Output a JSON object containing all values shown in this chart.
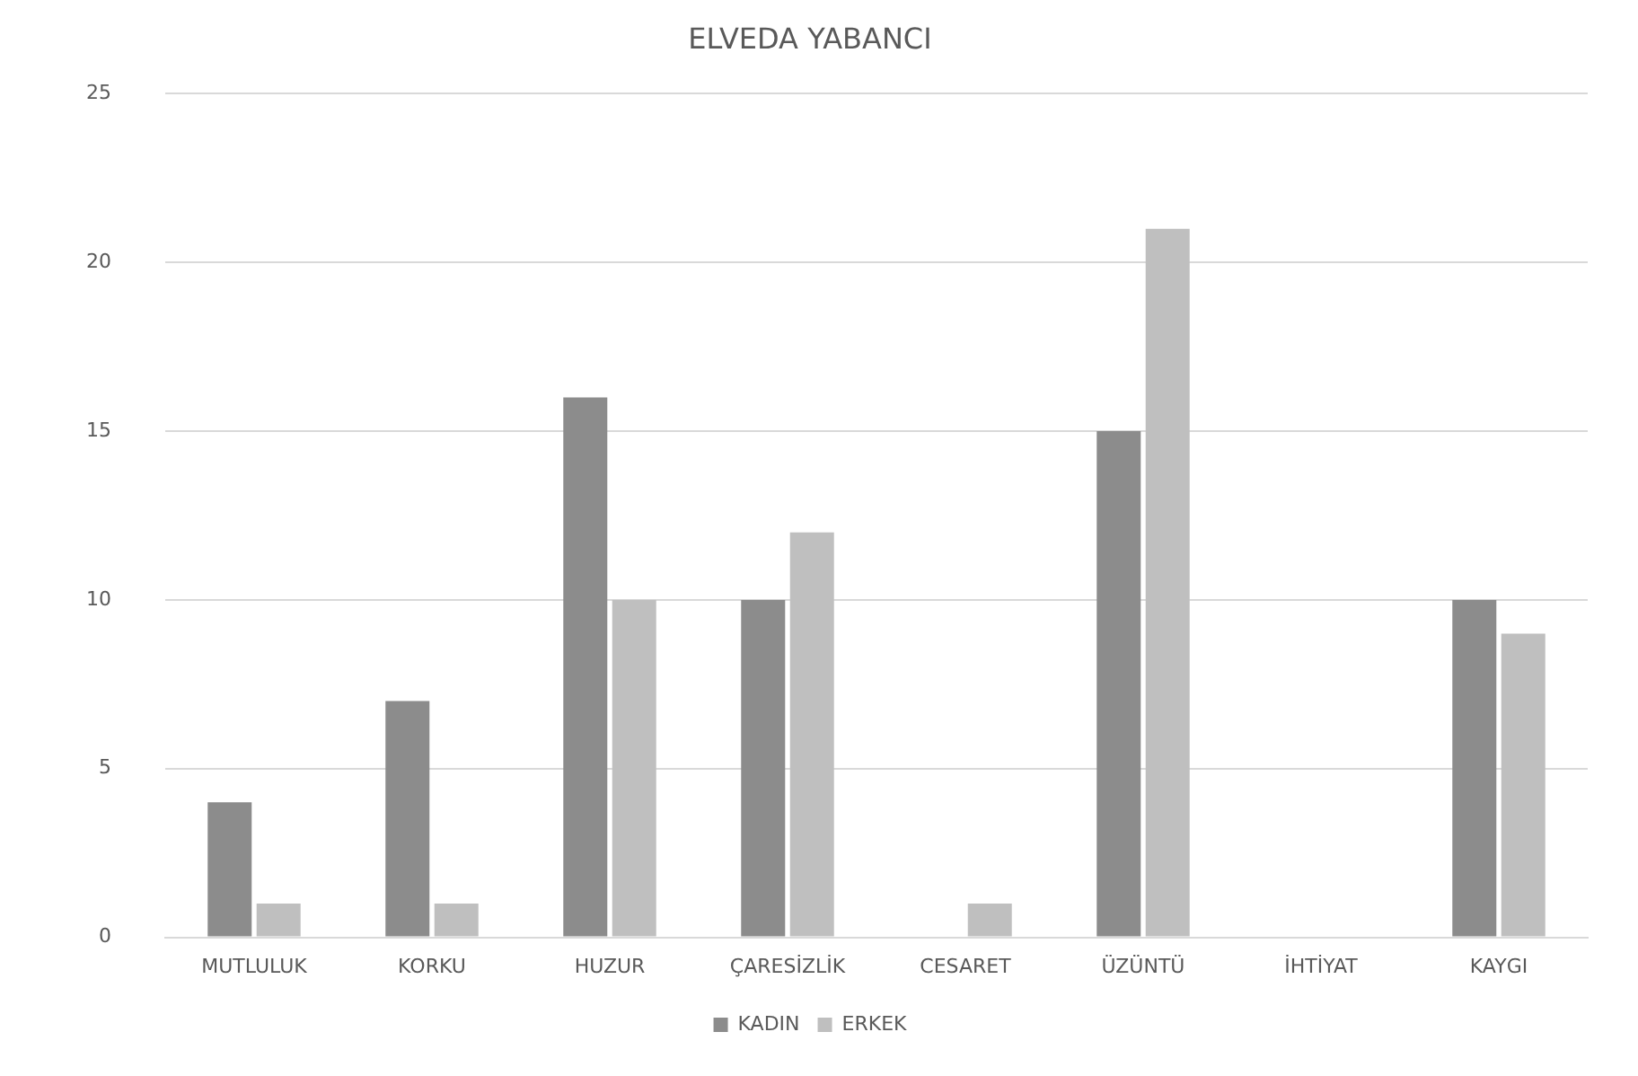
{
  "chart_data": {
    "type": "bar",
    "title": "ELVEDA YABANCI",
    "categories": [
      "MUTLULUK",
      "KORKU",
      "HUZUR",
      "ÇARESİZLİK",
      "CESARET",
      "ÜZÜNTÜ",
      "İHTİYAT",
      "KAYGI"
    ],
    "series": [
      {
        "name": "KADIN",
        "color": "#8c8c8c",
        "values": [
          4,
          7,
          16,
          10,
          0,
          15,
          0,
          10
        ]
      },
      {
        "name": "ERKEK",
        "color": "#bfbfbf",
        "values": [
          1,
          1,
          10,
          12,
          1,
          21,
          0,
          9
        ]
      }
    ],
    "ylim": [
      0,
      25
    ],
    "yticks": [
      0,
      5,
      10,
      15,
      20,
      25
    ],
    "grid": "y",
    "legend": "bottom"
  }
}
